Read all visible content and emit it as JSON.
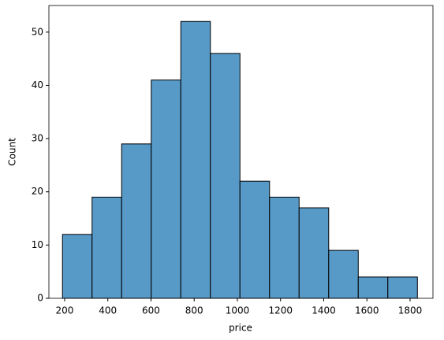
{
  "chart_data": {
    "type": "histogram",
    "x_label": "price",
    "y_label": "Count",
    "bins": [
      190,
      327,
      464,
      601,
      738,
      875,
      1012,
      1149,
      1286,
      1423,
      1560,
      1697,
      1834
    ],
    "counts": [
      12,
      19,
      29,
      41,
      52,
      46,
      22,
      19,
      17,
      9,
      4,
      4
    ],
    "color": "#5799c7",
    "edgecolor": "#000000",
    "xlim": [
      127,
      1906
    ],
    "ylim": [
      0,
      55
    ],
    "xticks": [
      200,
      400,
      600,
      800,
      1000,
      1200,
      1400,
      1600,
      1800
    ],
    "yticks": [
      0,
      10,
      20,
      30,
      40,
      50
    ]
  }
}
